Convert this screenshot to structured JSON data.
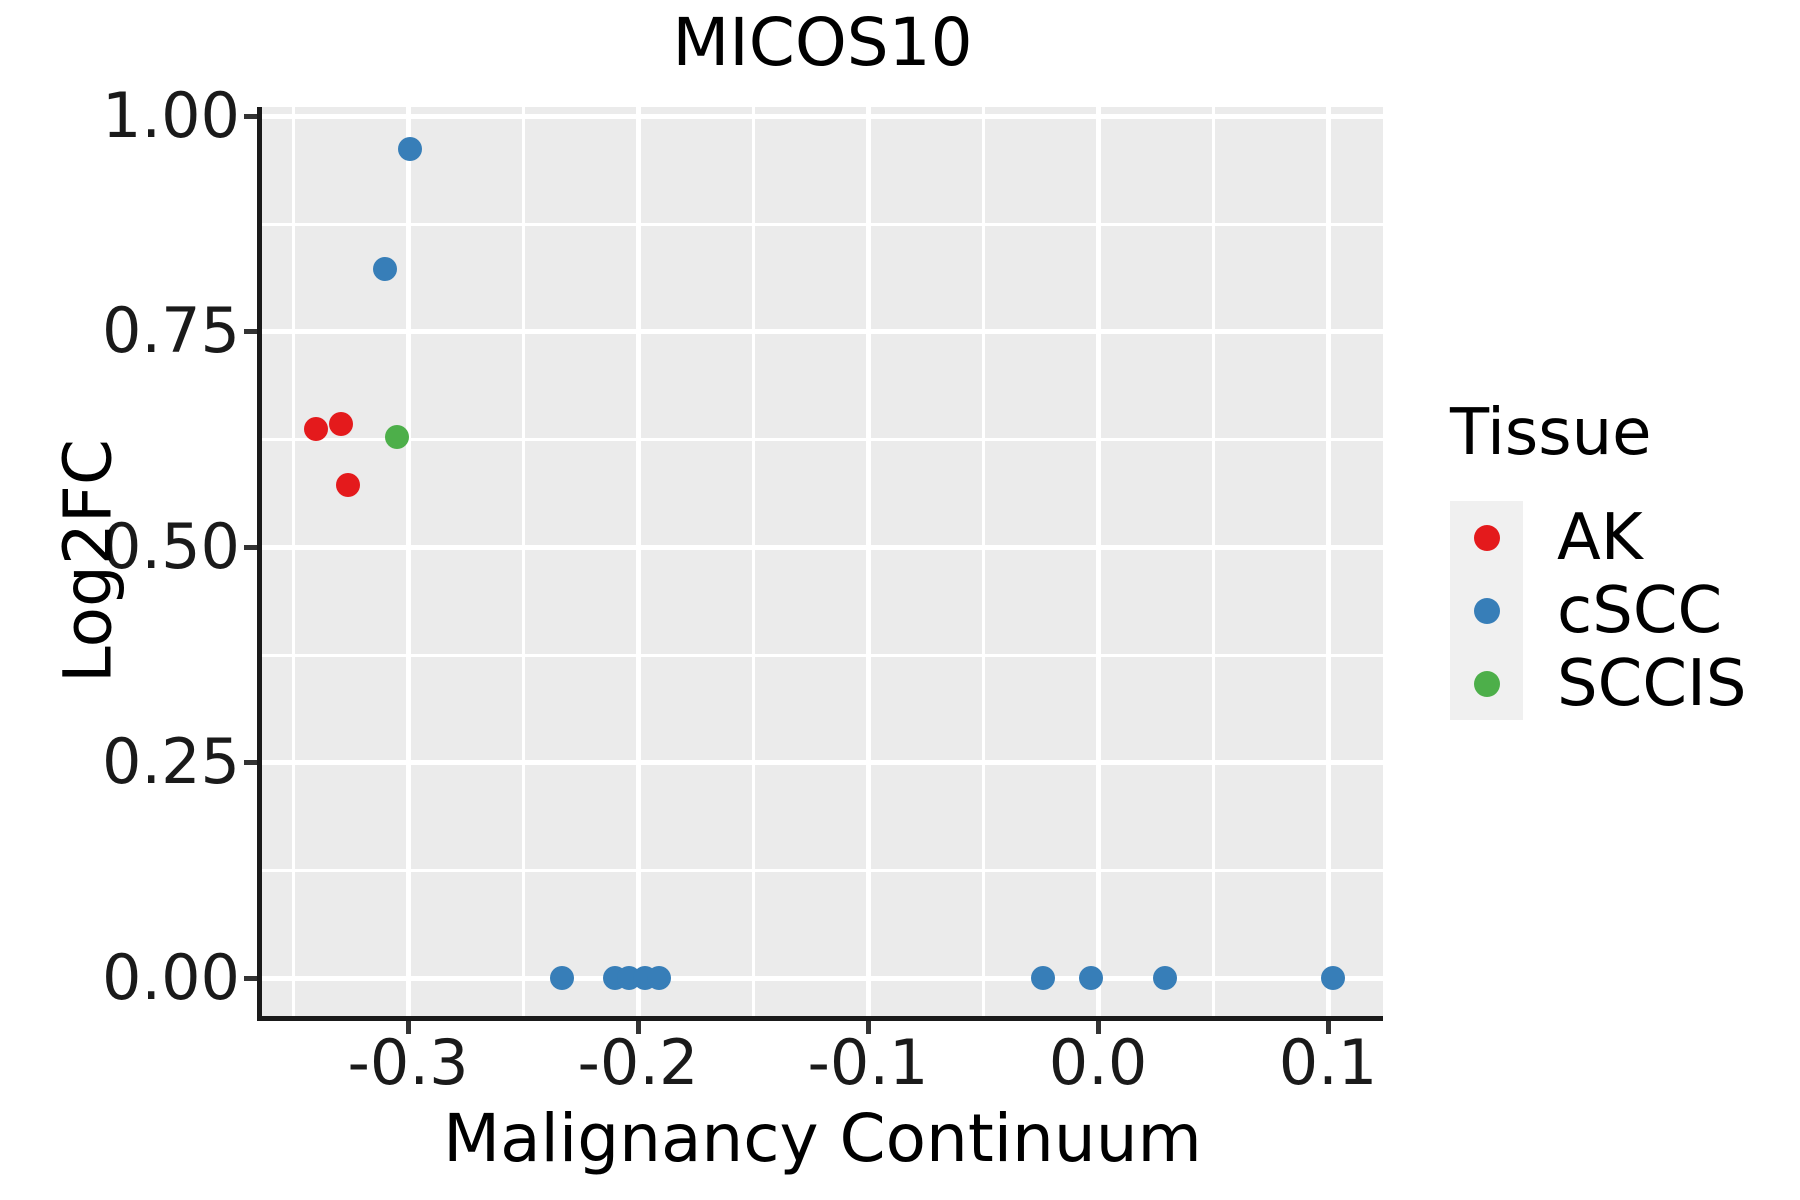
{
  "chart_data": {
    "type": "scatter",
    "title": "MICOS10",
    "xlabel": "Malignancy Continuum",
    "ylabel": "Log2FC",
    "xlim": [
      -0.3635,
      0.1239
    ],
    "ylim": [
      -0.0441,
      1.0104
    ],
    "x_ticks": [
      -0.3,
      -0.2,
      -0.1,
      0.0,
      0.1
    ],
    "x_tick_labels": [
      "-0.3",
      "-0.2",
      "-0.1",
      "0.0",
      "0.1"
    ],
    "x_minor_ticks": [
      -0.35,
      -0.25,
      -0.15,
      -0.05,
      0.05
    ],
    "y_ticks": [
      0.0,
      0.25,
      0.5,
      0.75,
      1.0
    ],
    "y_tick_labels": [
      "0.00",
      "0.25",
      "0.50",
      "0.75",
      "1.00"
    ],
    "y_minor_ticks": [
      0.125,
      0.375,
      0.625,
      0.875
    ],
    "grid": "major-and-minor",
    "legend": {
      "title": "Tissue",
      "position": "right"
    },
    "series": [
      {
        "name": "AK",
        "color": "#E41A1C",
        "points": [
          [
            -0.34,
            0.637
          ],
          [
            -0.329,
            0.643
          ],
          [
            -0.326,
            0.572
          ]
        ]
      },
      {
        "name": "cSCC",
        "color": "#377EB8",
        "points": [
          [
            -0.299,
            0.962
          ],
          [
            -0.31,
            0.823
          ],
          [
            -0.233,
            0.0
          ],
          [
            -0.21,
            0.0
          ],
          [
            -0.204,
            0.0
          ],
          [
            -0.197,
            0.0
          ],
          [
            -0.191,
            0.0
          ],
          [
            -0.024,
            0.0
          ],
          [
            -0.003,
            0.0
          ],
          [
            0.029,
            0.0
          ],
          [
            0.102,
            0.0
          ]
        ]
      },
      {
        "name": "SCCIS",
        "color": "#4DAF4A",
        "points": [
          [
            -0.305,
            0.627
          ]
        ]
      }
    ],
    "colors": {
      "panel_background": "#EBEBEB",
      "gridlines": "#FFFFFF",
      "axis_line": "#1A1A1A",
      "tick_marks": "#333333",
      "legend_key_background": "#F0F0F0"
    }
  }
}
